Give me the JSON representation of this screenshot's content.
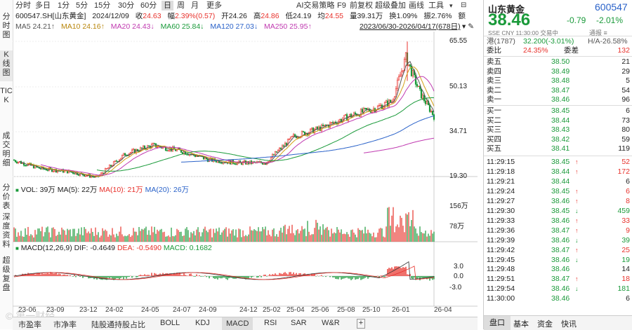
{
  "left_tabs": [
    "分时图",
    "K线图",
    "TICK",
    "成交明细",
    "分价表",
    "深度资料",
    "超级复盘"
  ],
  "toolbar": {
    "periods": [
      "分时",
      "多日",
      "1分",
      "5分",
      "15分",
      "30分",
      "60分",
      "日",
      "周",
      "月",
      "更多"
    ],
    "active_period": "日",
    "right_items": [
      "AI交易策略",
      "F9",
      "前复权",
      "超级叠加",
      "画线",
      "工具"
    ]
  },
  "info1": {
    "code": "600547.SH[山东黄金]",
    "date": "2024/12/09",
    "close_label": "收",
    "close": "24.63",
    "change_label": "幅",
    "change": "2.39%(0.57)",
    "open_label": "开",
    "open": "24.26",
    "high_label": "高",
    "high": "24.86",
    "low_label": "低",
    "low": "24.19",
    "avg_label": "均",
    "avg": "24.55",
    "amount_label": "量",
    "amount": "39.31万",
    "turnover_label": "换",
    "turnover": "1.09%",
    "amplitude_label": "振",
    "amplitude": "2.76%",
    "extra_label": "额"
  },
  "info2": {
    "ma5": "MA5 24.21↑",
    "ma10": "MA10 24.16↑",
    "ma20": "MA20 24.43↓",
    "ma60": "MA60 25.84↓",
    "ma120": "MA120 27.03↓",
    "ma250": "MA250 25.95↑",
    "range": "2023/06/30-2026/04/17(678日)"
  },
  "colors": {
    "up": "#e8322c",
    "down": "#1a9a3a",
    "ma5": "#555555",
    "ma10": "#d4a017",
    "ma20": "#c03ab0",
    "ma60": "#1a9a3a",
    "ma120": "#2a62c9",
    "ma250": "#c03ab0"
  },
  "price_axis": [
    "65.55",
    "50.13",
    "34.71",
    "19.30"
  ],
  "vol_panel": {
    "text": "VOL: 39万",
    "ma5": "MA(5): 22万",
    "ma10": "MA(10): 21万",
    "ma20": "MA(20): 26万",
    "axis": [
      "156万",
      "78万"
    ]
  },
  "macd_panel": {
    "text": "MACD(12,26,9)",
    "dif": "DIF: -0.4649",
    "dea": "DEA: -0.5490",
    "macd": "MACD: 0.1682",
    "axis": [
      "3.0",
      "0.0",
      "-3.0"
    ]
  },
  "date_axis": [
    "23-06",
    "23-09",
    "23-12",
    "24-02",
    "24-05",
    "24-07",
    "24-09",
    "24-12",
    "25-02",
    "25-04",
    "25-06",
    "25-08",
    "25-10",
    "26-01",
    "26-04"
  ],
  "bottom_tabs": [
    "市盈率",
    "市净率",
    "陆股通持股占比",
    "BOLL",
    "KDJ",
    "MACD",
    "RSI",
    "SAR",
    "W&R",
    "+"
  ],
  "active_bottom_tab": "MACD",
  "watermark": "第一财经",
  "right": {
    "name": "山东黄金",
    "code": "600547",
    "price": "38.46",
    "change": "-0.79",
    "pct": "-2.01%",
    "sub": "SSE CNY 11:30:00 交易中",
    "sub_right": "通报 ≡",
    "hk_label": "港(1787)",
    "hk_value": "32.200(-3.01%)",
    "ha_label": "H/A-26.58%",
    "webi_label": "委比",
    "webi": "24.35%",
    "weicha_label": "委差",
    "weicha": "132",
    "asks": [
      {
        "label": "卖五",
        "price": "38.50",
        "vol": "21"
      },
      {
        "label": "卖四",
        "price": "38.49",
        "vol": "29"
      },
      {
        "label": "卖三",
        "price": "38.48",
        "vol": "5"
      },
      {
        "label": "卖二",
        "price": "38.47",
        "vol": "54"
      },
      {
        "label": "卖一",
        "price": "38.46",
        "vol": "96"
      }
    ],
    "bids": [
      {
        "label": "买一",
        "price": "38.45",
        "vol": "6"
      },
      {
        "label": "买二",
        "price": "38.44",
        "vol": "73"
      },
      {
        "label": "买三",
        "price": "38.43",
        "vol": "80"
      },
      {
        "label": "买四",
        "price": "38.42",
        "vol": "59"
      },
      {
        "label": "买五",
        "price": "38.41",
        "vol": "119"
      }
    ],
    "ticks": [
      {
        "time": "11:29:15",
        "price": "38.45",
        "dir": "up",
        "vol": "52"
      },
      {
        "time": "11:29:18",
        "price": "38.44",
        "dir": "up",
        "vol": "172"
      },
      {
        "time": "11:29:21",
        "price": "38.44",
        "dir": "",
        "vol": "6"
      },
      {
        "time": "11:29:24",
        "price": "38.45",
        "dir": "up",
        "vol": "6"
      },
      {
        "time": "11:29:27",
        "price": "38.46",
        "dir": "up",
        "vol": "8"
      },
      {
        "time": "11:29:30",
        "price": "38.45",
        "dir": "down",
        "vol": "459"
      },
      {
        "time": "11:29:33",
        "price": "38.46",
        "dir": "up",
        "vol": "33"
      },
      {
        "time": "11:29:36",
        "price": "38.47",
        "dir": "up",
        "vol": "9"
      },
      {
        "time": "11:29:39",
        "price": "38.46",
        "dir": "down",
        "vol": "39"
      },
      {
        "time": "11:29:42",
        "price": "38.47",
        "dir": "up",
        "vol": "25"
      },
      {
        "time": "11:29:45",
        "price": "38.46",
        "dir": "down",
        "vol": "19"
      },
      {
        "time": "11:29:48",
        "price": "38.46",
        "dir": "",
        "vol": "14"
      },
      {
        "time": "11:29:51",
        "price": "38.47",
        "dir": "up",
        "vol": "18"
      },
      {
        "time": "11:29:54",
        "price": "38.46",
        "dir": "down",
        "vol": "181"
      },
      {
        "time": "11:30:00",
        "price": "38.46",
        "dir": "",
        "vol": "6"
      }
    ],
    "tabs": [
      "盘口",
      "基本",
      "资金",
      "快讯"
    ],
    "active_tab": "盘口"
  }
}
